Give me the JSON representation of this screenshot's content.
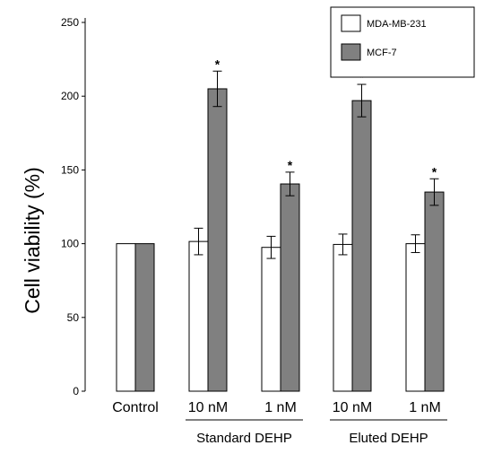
{
  "chart_data": {
    "type": "bar",
    "ylabel": "Cell viability (%)",
    "ylim": [
      0,
      250
    ],
    "yticks": [
      0,
      50,
      100,
      150,
      200,
      250
    ],
    "categories": [
      "Control",
      "10 nM",
      "1 nM",
      "10 nM",
      "1 nM"
    ],
    "groups": [
      {
        "label": "Standard DEHP",
        "categories": [
          1,
          2
        ]
      },
      {
        "label": "Eluted DEHP",
        "categories": [
          3,
          4
        ]
      }
    ],
    "series": [
      {
        "name": "MDA-MB-231",
        "color": "#ffffff",
        "values": [
          100,
          101.5,
          97.5,
          99.5,
          100
        ],
        "errors": [
          0,
          9,
          7.5,
          7,
          6
        ],
        "significant": [
          false,
          false,
          false,
          false,
          false
        ]
      },
      {
        "name": "MCF-7",
        "color": "#808080",
        "values": [
          100,
          205,
          140.5,
          197,
          135
        ],
        "errors": [
          0,
          12,
          8,
          11,
          9
        ],
        "significant": [
          false,
          true,
          true,
          true,
          true
        ]
      }
    ],
    "significance_marker": "*",
    "legend": {
      "position": "top-right"
    },
    "grid": false
  }
}
